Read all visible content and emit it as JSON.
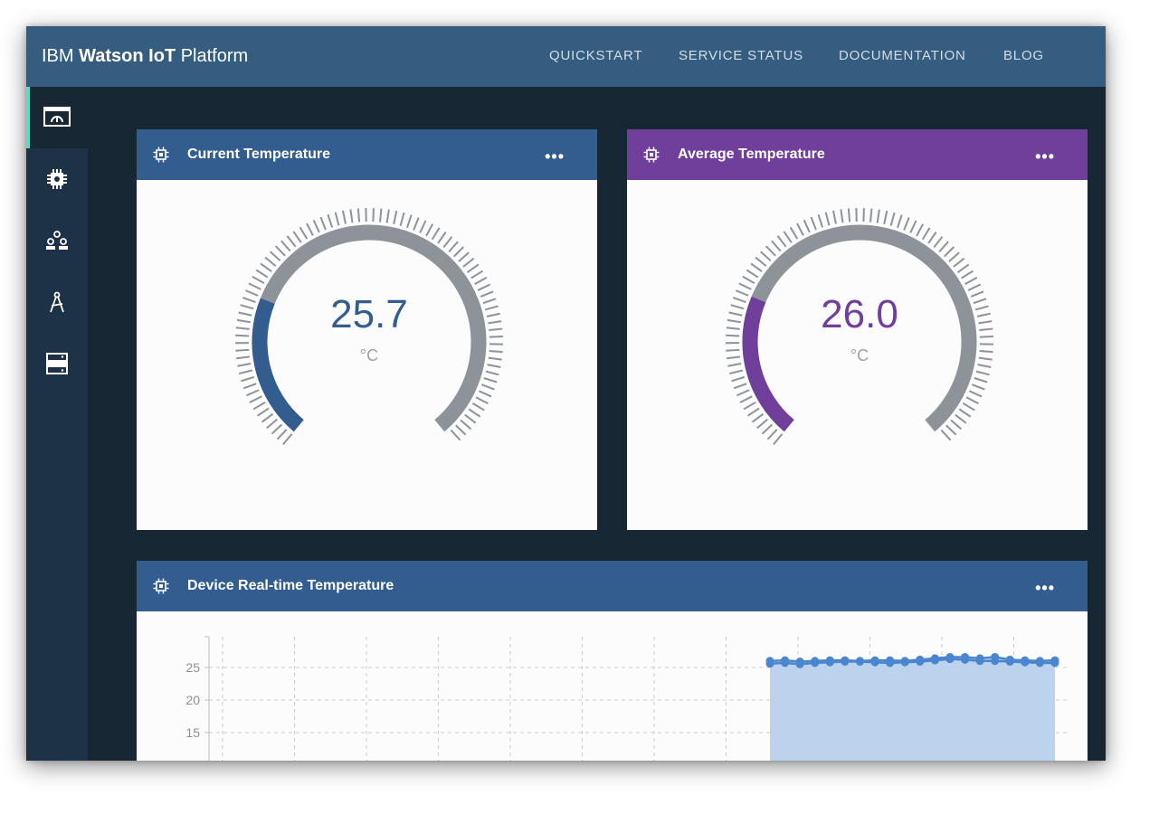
{
  "app": {
    "brand_ibm": "IBM",
    "brand_watson": "Watson IoT",
    "brand_platform": "Platform"
  },
  "nav": [
    "QUICKSTART",
    "SERVICE STATUS",
    "DOCUMENTATION",
    "BLOG"
  ],
  "sidebar": {
    "items": [
      {
        "icon": "dashboard-icon",
        "active": true
      },
      {
        "icon": "devices-chip-icon",
        "active": false
      },
      {
        "icon": "members-icon",
        "active": false
      },
      {
        "icon": "rules-compass-icon",
        "active": false
      },
      {
        "icon": "extensions-server-icon",
        "active": false
      }
    ]
  },
  "cards": {
    "current": {
      "title": "Current Temperature",
      "value": "25.7",
      "unit": "°C",
      "accent": "#345d8f",
      "header_color": "#345d8f"
    },
    "average": {
      "title": "Average Temperature",
      "value": "26.0",
      "unit": "°C",
      "accent": "#6f3f9b",
      "header_color": "#6f3f9b"
    },
    "realtime": {
      "title": "Device Real-time Temperature",
      "header_color": "#345d8f"
    }
  },
  "chart_data": {
    "type": "area",
    "title": "",
    "yticks": [
      "25",
      "20",
      "15"
    ],
    "series": [
      {
        "values": [
          26.0,
          26.1,
          25.9,
          26.0,
          26.1,
          26.1,
          26.0,
          26.1,
          26.1,
          26.0,
          26.2,
          26.4,
          26.6,
          26.6,
          26.4,
          26.6,
          26.2,
          26.1,
          26.0,
          26.1
        ]
      },
      {
        "values": [
          25.6,
          25.7,
          25.5,
          25.7,
          25.8,
          25.9,
          25.9,
          25.8,
          25.7,
          25.8,
          25.9,
          26.1,
          26.3,
          26.2,
          26.0,
          26.0,
          25.9,
          25.8,
          25.7,
          25.7
        ]
      }
    ],
    "grid": true,
    "fill_color": "#bcd3ee",
    "line_color": "#4a86cf"
  }
}
